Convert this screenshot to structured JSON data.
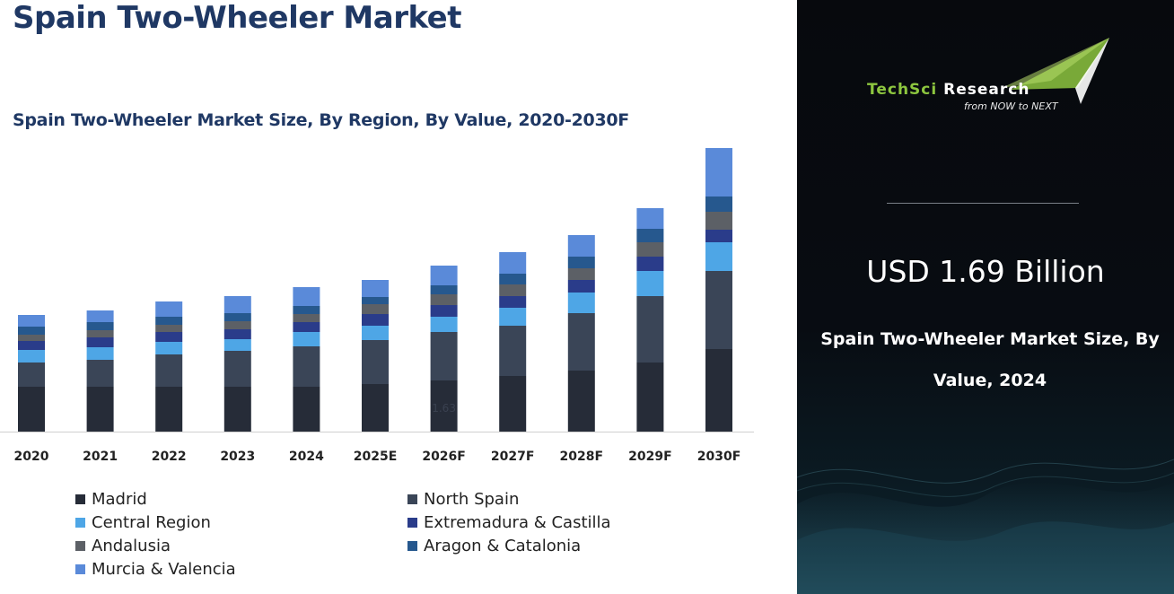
{
  "title": "Spain Two-Wheeler Market",
  "chart_data": {
    "type": "bar",
    "stacked": true,
    "title": "Spain Two-Wheeler Market Size, By Region, By Value, 2020-2030F",
    "xlabel": "",
    "ylabel": "",
    "categories": [
      "2020",
      "2021",
      "2022",
      "2023",
      "2024",
      "2025E",
      "2026F",
      "2027F",
      "2028F",
      "2029F",
      "2030F"
    ],
    "series": [
      {
        "name": "Madrid",
        "color": "#262c38",
        "values": [
          50,
          50,
          50,
          50,
          50,
          53,
          57,
          62,
          68,
          77,
          92
        ]
      },
      {
        "name": "North Spain",
        "color": "#3a4557",
        "values": [
          27,
          30,
          36,
          40,
          45,
          49,
          54,
          56,
          64,
          74,
          87
        ]
      },
      {
        "name": "Central Region",
        "color": "#4ea6e6",
        "values": [
          14,
          14,
          14,
          13,
          16,
          16,
          17,
          20,
          23,
          28,
          32
        ]
      },
      {
        "name": "Extremadura & Castilla",
        "color": "#2a3c8a",
        "values": [
          10,
          11,
          11,
          11,
          11,
          13,
          13,
          13,
          14,
          16,
          14
        ]
      },
      {
        "name": "Andalusia",
        "color": "#5c6066",
        "values": [
          7,
          8,
          8,
          9,
          9,
          11,
          12,
          13,
          13,
          16,
          20
        ]
      },
      {
        "name": "Aragon & Catalonia",
        "color": "#26588e",
        "values": [
          9,
          9,
          9,
          9,
          9,
          8,
          10,
          12,
          13,
          15,
          17
        ]
      },
      {
        "name": "Murcia & Valencia",
        "color": "#5a8ad9",
        "values": [
          13,
          13,
          17,
          19,
          21,
          19,
          22,
          24,
          24,
          23,
          54
        ]
      }
    ],
    "annotations": [
      "1.63"
    ],
    "grid": false,
    "legend_position": "bottom"
  },
  "right_panel": {
    "logo": {
      "brand_part1": "TechSci",
      "brand_part2": "Research",
      "tagline": "from NOW to NEXT"
    },
    "headline_value": "USD 1.69 Billion",
    "caption": "Spain Two-Wheeler Market  Size, By Value, 2024",
    "colors": {
      "brand_green": "#8dc63f",
      "background": "#07090d"
    }
  }
}
